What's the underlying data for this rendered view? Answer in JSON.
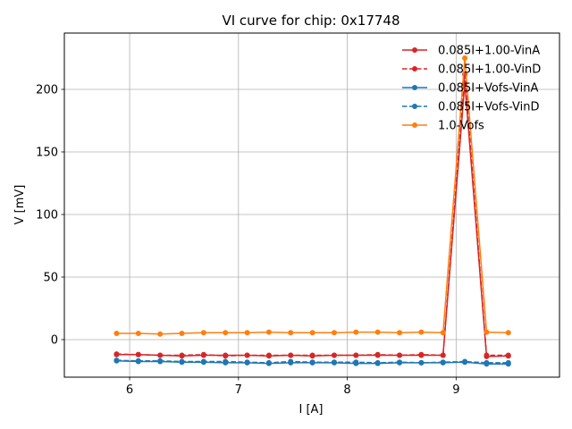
{
  "chart_data": {
    "type": "line",
    "title": "VI curve for chip: 0x17748",
    "xlabel": "I [A]",
    "ylabel": "V [mV]",
    "xlim": [
      5.4,
      9.95
    ],
    "ylim": [
      -30,
      245
    ],
    "xticks": [
      6,
      7,
      8,
      9
    ],
    "yticks": [
      0,
      50,
      100,
      150,
      200
    ],
    "grid": true,
    "legend_position": "top-right",
    "x": [
      5.88,
      6.08,
      6.28,
      6.48,
      6.68,
      6.88,
      7.08,
      7.28,
      7.48,
      7.68,
      7.88,
      8.08,
      8.28,
      8.48,
      8.68,
      8.88,
      9.08,
      9.28,
      9.48
    ],
    "series": [
      {
        "name": "0.085I+1.00-VinA",
        "color": "#d62728",
        "dashed": false,
        "values": [
          -12,
          -12,
          -12.5,
          -13,
          -12.5,
          -12.5,
          -12.5,
          -13,
          -12.5,
          -13,
          -12.5,
          -12.5,
          -12.5,
          -12.5,
          -12.5,
          -12.5,
          205,
          -13.5,
          -13
        ]
      },
      {
        "name": "0.085I+1.00-VinD",
        "color": "#d62728",
        "dashed": true,
        "values": [
          -11.5,
          -12,
          -12.5,
          -12.5,
          -12,
          -13,
          -12.5,
          -12.5,
          -12.5,
          -12.5,
          -12.5,
          -12.5,
          -12,
          -12.5,
          -12,
          -12.5,
          212,
          -12.5,
          -12.5
        ]
      },
      {
        "name": "0.085I+Vofs-VinA",
        "color": "#1f77b4",
        "dashed": false,
        "values": [
          -17,
          -17.5,
          -17.5,
          -18,
          -18,
          -18.5,
          -18.5,
          -19,
          -18.5,
          -18.5,
          -18.5,
          -19,
          -19,
          -18.5,
          -18.5,
          -18.5,
          -18,
          -19.5,
          -19.5
        ]
      },
      {
        "name": "0.085I+Vofs-VinD",
        "color": "#1f77b4",
        "dashed": true,
        "values": [
          -16.5,
          -17,
          -17,
          -17.5,
          -17.5,
          -17.5,
          -18,
          -18.5,
          -17.5,
          -18,
          -18,
          -18,
          -18.5,
          -18,
          -18.5,
          -18,
          -17.5,
          -18.5,
          -18.5
        ]
      },
      {
        "name": "1.0-Vofs",
        "color": "#ff7f0e",
        "dashed": false,
        "values": [
          5,
          5,
          4.5,
          5,
          5.5,
          5.5,
          5.5,
          6,
          5.5,
          5.5,
          5.5,
          6,
          6,
          5.5,
          6,
          5.5,
          225,
          6,
          5.5
        ]
      }
    ]
  }
}
